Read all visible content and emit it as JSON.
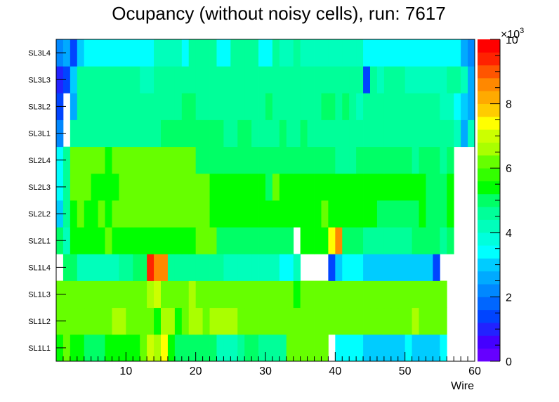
{
  "chart_data": {
    "type": "heatmap",
    "title": "Ocupancy (without noisy cells), run: 7617",
    "xlabel": "Wire",
    "ylabel": "",
    "xlim": [
      0,
      60
    ],
    "xticks": [
      "10",
      "20",
      "30",
      "40",
      "50",
      "60"
    ],
    "rows": [
      "SL1L1",
      "SL1L2",
      "SL1L3",
      "SL1L4",
      "SL2L1",
      "SL2L2",
      "SL2L3",
      "SL2L4",
      "SL3L1",
      "SL3L2",
      "SL3L3",
      "SL3L4"
    ],
    "zlim": [
      0,
      10000
    ],
    "zticks": [
      "0",
      "2",
      "4",
      "6",
      "8",
      "10"
    ],
    "z_exponent_label": "×10",
    "z_exponent": "3",
    "values": [
      [
        5500,
        6000,
        5500,
        5500,
        5000,
        5000,
        5000,
        5500,
        5500,
        5500,
        5500,
        5500,
        6000,
        7000,
        6500,
        7500,
        5500,
        5000,
        5000,
        5000,
        5000,
        5000,
        5000,
        4000,
        4000,
        4000,
        4500,
        5000,
        5000,
        4500,
        4500,
        4500,
        4500,
        6000,
        6000,
        6000,
        6000,
        6000,
        6000,
        null,
        3500,
        3500,
        3500,
        3500,
        2800,
        2800,
        2800,
        2800,
        2800,
        2800,
        3500,
        2800,
        2800,
        2800,
        2800,
        3500,
        null,
        null,
        null,
        null
      ],
      [
        6000,
        6000,
        6000,
        6000,
        6000,
        6000,
        6000,
        6000,
        6500,
        6500,
        6000,
        6000,
        6000,
        6000,
        5500,
        6500,
        6500,
        5500,
        6000,
        6500,
        6500,
        6000,
        6500,
        6500,
        6500,
        6500,
        6000,
        6000,
        6000,
        6000,
        6000,
        6000,
        6000,
        6000,
        6000,
        6000,
        6000,
        6000,
        6000,
        6000,
        6000,
        6000,
        6000,
        6000,
        6000,
        6000,
        6000,
        6000,
        6000,
        6000,
        6000,
        6500,
        6000,
        6000,
        6000,
        6000,
        null,
        null,
        null,
        null
      ],
      [
        6000,
        6000,
        6000,
        6000,
        6000,
        6000,
        6000,
        6000,
        6000,
        6000,
        6000,
        6000,
        6000,
        6500,
        7000,
        6000,
        6000,
        6000,
        6000,
        6500,
        6000,
        6000,
        6000,
        6000,
        6000,
        6000,
        6000,
        6000,
        6000,
        6000,
        6000,
        6000,
        6000,
        6000,
        5500,
        6000,
        6000,
        6000,
        6000,
        6000,
        6000,
        6000,
        6000,
        6000,
        6000,
        6000,
        6000,
        6000,
        6000,
        6000,
        6000,
        6000,
        6000,
        6000,
        6000,
        6000,
        null,
        null,
        null,
        null
      ],
      [
        null,
        5000,
        5000,
        4000,
        4000,
        4000,
        4000,
        4000,
        4000,
        4500,
        4500,
        5000,
        5000,
        9500,
        8500,
        8500,
        4500,
        4500,
        4500,
        4500,
        4500,
        4500,
        4500,
        4500,
        4000,
        4000,
        4000,
        4000,
        4000,
        4000,
        4000,
        4000,
        3500,
        3500,
        4000,
        null,
        null,
        null,
        null,
        1500,
        3000,
        3500,
        3500,
        3500,
        2800,
        2800,
        2800,
        2800,
        2800,
        2800,
        2800,
        2800,
        2800,
        2800,
        1500,
        null,
        null,
        null,
        null,
        null
      ],
      [
        5000,
        4000,
        5500,
        5500,
        5500,
        5500,
        5500,
        6000,
        5500,
        5500,
        5500,
        5500,
        5500,
        5500,
        5500,
        5500,
        5500,
        5500,
        5500,
        5500,
        6000,
        6000,
        6000,
        5000,
        5000,
        5000,
        5000,
        5000,
        5000,
        5000,
        5000,
        5000,
        5000,
        5000,
        null,
        5500,
        5500,
        5500,
        5500,
        7500,
        8500,
        5000,
        5000,
        5000,
        4500,
        4500,
        4500,
        4500,
        4500,
        4500,
        4500,
        5000,
        5000,
        5000,
        5000,
        4500,
        5000,
        null,
        null,
        null
      ],
      [
        3000,
        4500,
        5500,
        6000,
        5500,
        5500,
        6000,
        5500,
        6000,
        6000,
        6000,
        6000,
        6000,
        6000,
        6000,
        6000,
        6000,
        6000,
        6000,
        6000,
        6000,
        6000,
        5500,
        5500,
        5500,
        5500,
        5500,
        5500,
        5500,
        5500,
        5500,
        5500,
        5500,
        5500,
        5500,
        5500,
        5500,
        5500,
        6000,
        5500,
        5500,
        5500,
        5500,
        5500,
        5500,
        5500,
        5000,
        5000,
        5000,
        5000,
        5000,
        5000,
        5500,
        5000,
        5000,
        5000,
        5500,
        null,
        null,
        null
      ],
      [
        3500,
        4500,
        6000,
        6000,
        6000,
        5500,
        5500,
        5500,
        5500,
        6000,
        6000,
        6000,
        6000,
        6000,
        6000,
        6000,
        6000,
        6000,
        6000,
        6000,
        6000,
        6000,
        5500,
        5500,
        5500,
        5500,
        5500,
        5500,
        5500,
        5500,
        5000,
        6000,
        5500,
        5500,
        5500,
        5500,
        5500,
        5500,
        5500,
        5500,
        5500,
        5500,
        5500,
        5500,
        5500,
        5500,
        5500,
        5500,
        5500,
        5500,
        5500,
        5500,
        5500,
        5000,
        5000,
        5000,
        5500,
        null,
        null,
        null
      ],
      [
        3500,
        4500,
        6000,
        6000,
        6000,
        6000,
        6000,
        5500,
        6000,
        6000,
        6000,
        6000,
        6000,
        6000,
        6000,
        6000,
        6000,
        6000,
        6000,
        6000,
        5000,
        5000,
        5000,
        5000,
        5000,
        5000,
        5000,
        5000,
        5000,
        5000,
        5000,
        5000,
        5000,
        5000,
        5000,
        5000,
        5000,
        5000,
        5000,
        5000,
        4500,
        4500,
        4500,
        5000,
        5000,
        5000,
        5000,
        5000,
        5000,
        5000,
        5000,
        4500,
        5000,
        5000,
        5000,
        4500,
        5000,
        null,
        null,
        null
      ],
      [
        2000,
        null,
        4500,
        4500,
        4500,
        4500,
        4500,
        4500,
        4500,
        4500,
        4500,
        4500,
        4500,
        4500,
        4500,
        5000,
        5000,
        5000,
        5000,
        5000,
        5000,
        5000,
        5000,
        5000,
        4500,
        4500,
        5000,
        5000,
        4500,
        4500,
        4500,
        4500,
        5000,
        4500,
        4500,
        5000,
        4500,
        4500,
        4500,
        4500,
        4500,
        4500,
        4500,
        4500,
        4500,
        4500,
        4500,
        4500,
        4500,
        4500,
        4500,
        4500,
        4500,
        4500,
        4500,
        4500,
        4500,
        4000,
        2500,
        4000
      ],
      [
        1500,
        null,
        2500,
        4500,
        4500,
        4500,
        4500,
        4500,
        4500,
        4500,
        4500,
        4500,
        4500,
        4500,
        4500,
        4500,
        4500,
        4500,
        5000,
        5000,
        4500,
        4500,
        4500,
        4500,
        4500,
        4500,
        4500,
        4500,
        4500,
        4500,
        5000,
        4500,
        4500,
        4500,
        4500,
        4500,
        4500,
        4500,
        5000,
        5000,
        4500,
        5000,
        4500,
        4000,
        4500,
        4500,
        4500,
        4500,
        4500,
        4500,
        4500,
        4500,
        4500,
        4500,
        4500,
        4000,
        4000,
        3500,
        3000,
        2500
      ],
      [
        1000,
        1500,
        3000,
        4500,
        4500,
        4500,
        4500,
        4500,
        4500,
        4500,
        4500,
        4500,
        4000,
        4000,
        4500,
        4500,
        4500,
        4500,
        4500,
        4500,
        4500,
        4500,
        4500,
        4500,
        4500,
        4500,
        4500,
        4500,
        4500,
        4500,
        4500,
        4500,
        4500,
        4500,
        4500,
        4500,
        4500,
        4500,
        4500,
        4500,
        4500,
        4500,
        4500,
        4500,
        1500,
        4500,
        4000,
        4500,
        4500,
        4500,
        4000,
        4000,
        4000,
        4000,
        4000,
        4000,
        4500,
        4500,
        4000,
        2500
      ],
      [
        2000,
        2500,
        1500,
        3000,
        3500,
        3500,
        3500,
        3500,
        3500,
        3500,
        3500,
        3500,
        3500,
        3500,
        4000,
        4000,
        4000,
        4000,
        3500,
        4500,
        4500,
        4500,
        4500,
        3500,
        3500,
        4500,
        4500,
        4500,
        4500,
        3500,
        3500,
        4500,
        4000,
        4000,
        4500,
        4000,
        4000,
        4000,
        4000,
        4000,
        4000,
        4000,
        4000,
        4000,
        3500,
        3500,
        3500,
        3500,
        3500,
        3500,
        3500,
        3500,
        3500,
        3500,
        3500,
        3500,
        3500,
        3500,
        2500,
        2000
      ]
    ]
  }
}
